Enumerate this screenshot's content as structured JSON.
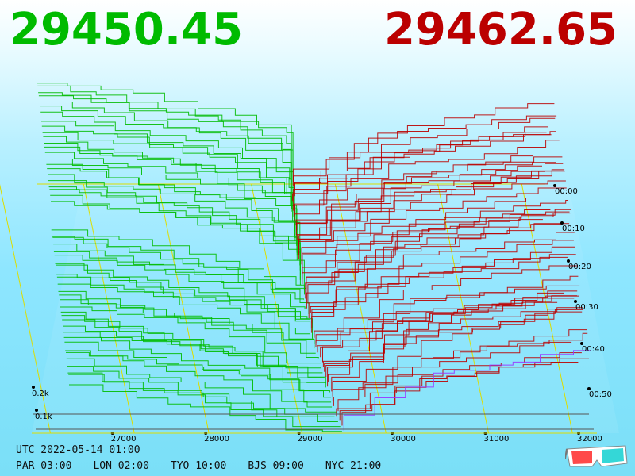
{
  "header": {
    "bid_price": "29450.45",
    "ask_price": "29462.65"
  },
  "footer": {
    "utc_label": "UTC 2022-05-14 01:00",
    "sessions": [
      "PAR 03:00",
      "LON 02:00",
      "TYO 10:00",
      "BJS 09:00",
      "NYC 21:00"
    ]
  },
  "colors": {
    "bid": "#00bb00",
    "ask": "#bb0000",
    "grid_yellow": "#dddd00",
    "base_line": "#9933ff"
  },
  "icon": "3d-glasses-icon",
  "chart_data": {
    "type": "line",
    "description_free": true,
    "x_ticks": [
      "27000",
      "28000",
      "29000",
      "30000",
      "31000",
      "32000"
    ],
    "time_ticks": [
      "00:00",
      "00:10",
      "00:20",
      "00:30",
      "00:40",
      "00:50"
    ],
    "volume_ticks": [
      "0.1k",
      "0.2k"
    ],
    "xlim": [
      26100,
      32400
    ],
    "time_range_minutes": [
      0,
      60
    ],
    "volume_range": [
      0,
      0.9
    ],
    "mid_price_range": [
      29300,
      29460
    ],
    "bid": "29450.45",
    "ask": "29462.65"
  }
}
